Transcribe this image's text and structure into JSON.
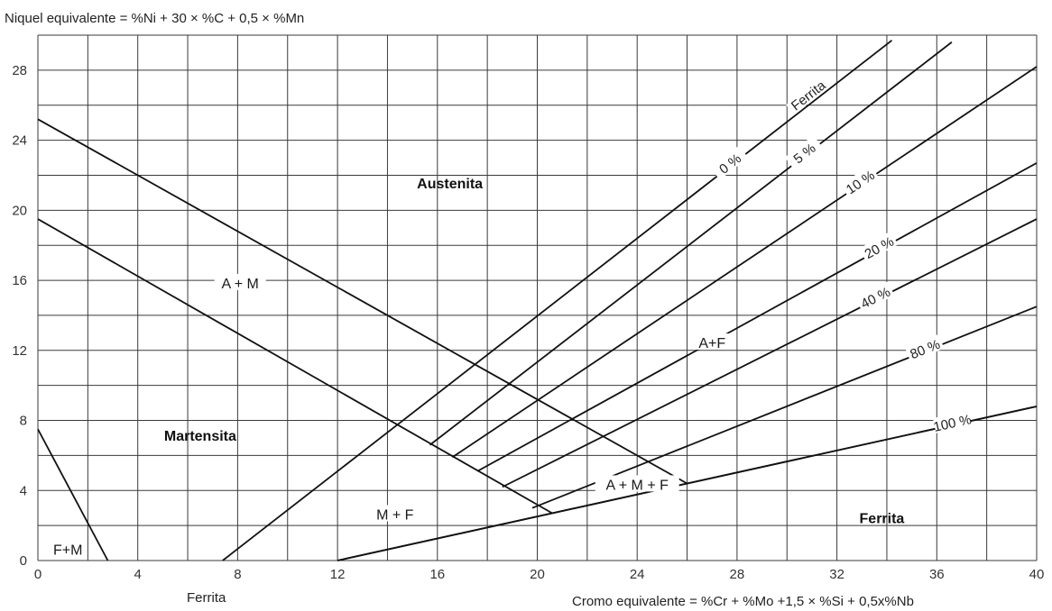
{
  "chart_data": {
    "type": "line",
    "title": "",
    "ylabel": "Niquel equivalente = %Ni + 30 × %C + 0,5 × %Mn",
    "xlabel": "Cromo equivalente = %Cr + %Mo +1,5 × %Si + 0,5x%Nb",
    "xlabel_secondary": "Ferrita",
    "xlim": [
      0,
      40
    ],
    "ylim": [
      0,
      30
    ],
    "x_ticks": [
      0,
      4,
      8,
      12,
      16,
      20,
      24,
      28,
      32,
      36,
      40
    ],
    "y_ticks": [
      0,
      4,
      8,
      12,
      16,
      20,
      24,
      28
    ],
    "grid": true,
    "phase_boundaries": [
      {
        "x": [
          0,
          2.8
        ],
        "y": [
          7.5,
          0
        ]
      },
      {
        "x": [
          0,
          20.6
        ],
        "y": [
          19.5,
          2.7
        ]
      },
      {
        "x": [
          0,
          26
        ],
        "y": [
          25.2,
          4.4
        ]
      },
      {
        "x": [
          12,
          40
        ],
        "y": [
          0,
          8.8
        ]
      }
    ],
    "ferrite_series": [
      {
        "name": "0 %",
        "x": [
          7.4,
          34.2
        ],
        "y": [
          0,
          29.7
        ]
      },
      {
        "name": "5 %",
        "x": [
          15.7,
          36.6
        ],
        "y": [
          6.6,
          29.6
        ]
      },
      {
        "name": "10 %",
        "x": [
          16.6,
          40
        ],
        "y": [
          5.9,
          28.2
        ]
      },
      {
        "name": "20 %",
        "x": [
          17.6,
          40
        ],
        "y": [
          5.1,
          22.7
        ]
      },
      {
        "name": "40 %",
        "x": [
          18.6,
          40
        ],
        "y": [
          4.2,
          19.5
        ]
      },
      {
        "name": "80 %",
        "x": [
          19.8,
          40
        ],
        "y": [
          3.0,
          14.5
        ]
      },
      {
        "name": "100 %",
        "x": [
          12,
          40
        ],
        "y": [
          0,
          8.8
        ]
      }
    ],
    "ferrite_header": "Ferrita",
    "regions": [
      {
        "label": "Austenita",
        "x": 16.5,
        "y": 21.5,
        "bold": true
      },
      {
        "label": "A + M",
        "x": 8.1,
        "y": 15.8,
        "bold": false
      },
      {
        "label": "Martensita",
        "x": 6.5,
        "y": 7.1,
        "bold": true
      },
      {
        "label": "A+F",
        "x": 27.0,
        "y": 12.4,
        "bold": false
      },
      {
        "label": "A + M + F",
        "x": 24.0,
        "y": 4.3,
        "bold": false
      },
      {
        "label": "M + F",
        "x": 14.3,
        "y": 2.6,
        "bold": false
      },
      {
        "label": "Ferrita",
        "x": 33.8,
        "y": 2.4,
        "bold": true
      },
      {
        "label": "F+M",
        "x": 1.2,
        "y": 0.6,
        "bold": false
      }
    ]
  }
}
